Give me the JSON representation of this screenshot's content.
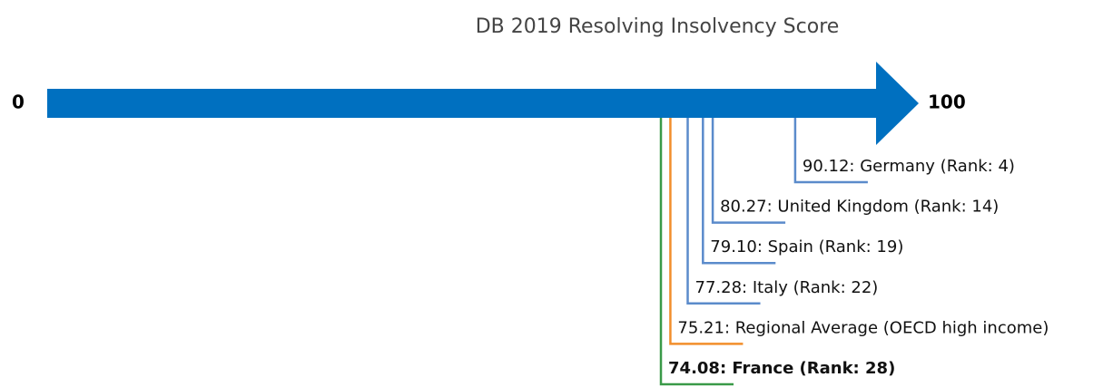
{
  "chart_data": {
    "type": "number-line",
    "title": "DB 2019 Resolving Insolvency Score",
    "xlim": [
      0,
      100
    ],
    "xticks": [
      0,
      100
    ],
    "axis_color": "#0070c0",
    "values": [
      90.12,
      80.27,
      79.1,
      77.28,
      75.21,
      74.08
    ],
    "value_labels": [
      "90.12: Germany (Rank: 4)",
      "80.27: United Kingdom (Rank: 14)",
      "79.10: Spain (Rank: 19)",
      "77.28: Italy (Rank: 22)",
      "75.21: Regional Average (OECD high income)",
      "74.08: France (Rank: 28)"
    ],
    "colors": [
      "#5b8bcb",
      "#5b8bcb",
      "#5b8bcb",
      "#5b8bcb",
      "#f28e2b",
      "#3a9a48"
    ],
    "bold": [
      false,
      false,
      false,
      false,
      false,
      true
    ]
  }
}
